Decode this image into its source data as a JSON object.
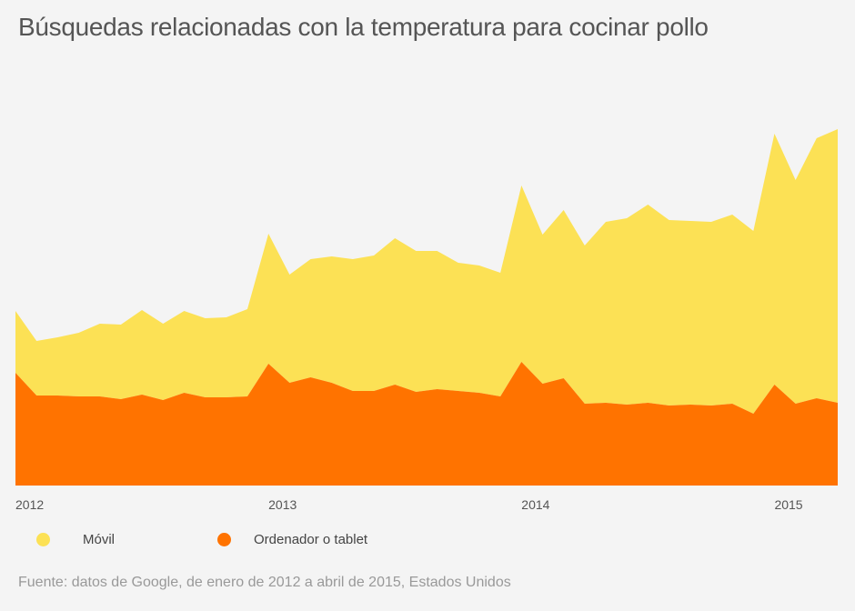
{
  "title": "Búsquedas relacionadas con la temperatura para cocinar pollo",
  "source": "Fuente: datos de Google, de enero de 2012 a abril de 2015, Estados Unidos",
  "legend": [
    {
      "label": "Móvil",
      "color": "#fce155"
    },
    {
      "label": "Ordenador o tablet",
      "color": "#ff7300"
    }
  ],
  "chart_data": {
    "type": "area",
    "stacked": true,
    "x_start": "2012-01",
    "x_end": "2015-04",
    "x_ticks": [
      "2012",
      "2013",
      "2014",
      "2015"
    ],
    "series": [
      {
        "name": "Ordenador o tablet",
        "color": "#ff7300",
        "values": [
          124,
          99,
          99,
          98,
          98,
          95,
          100,
          94,
          102,
          97,
          97,
          98,
          134,
          113,
          119,
          113,
          104,
          104,
          111,
          103,
          106,
          104,
          102,
          98,
          136,
          112,
          118,
          90,
          91,
          89,
          91,
          88,
          89,
          88,
          90,
          79,
          111,
          90,
          96,
          91
        ]
      },
      {
        "name": "Móvil",
        "color": "#fce155",
        "values": [
          68,
          60,
          64,
          70,
          80,
          82,
          93,
          84,
          90,
          87,
          88,
          96,
          143,
          119,
          130,
          139,
          145,
          149,
          161,
          155,
          152,
          141,
          140,
          136,
          194,
          164,
          185,
          174,
          199,
          205,
          218,
          204,
          202,
          202,
          208,
          201,
          276,
          246,
          286,
          301
        ]
      }
    ],
    "xlabel": "",
    "ylabel": "",
    "grid": false,
    "legend_position": "bottom-left"
  }
}
